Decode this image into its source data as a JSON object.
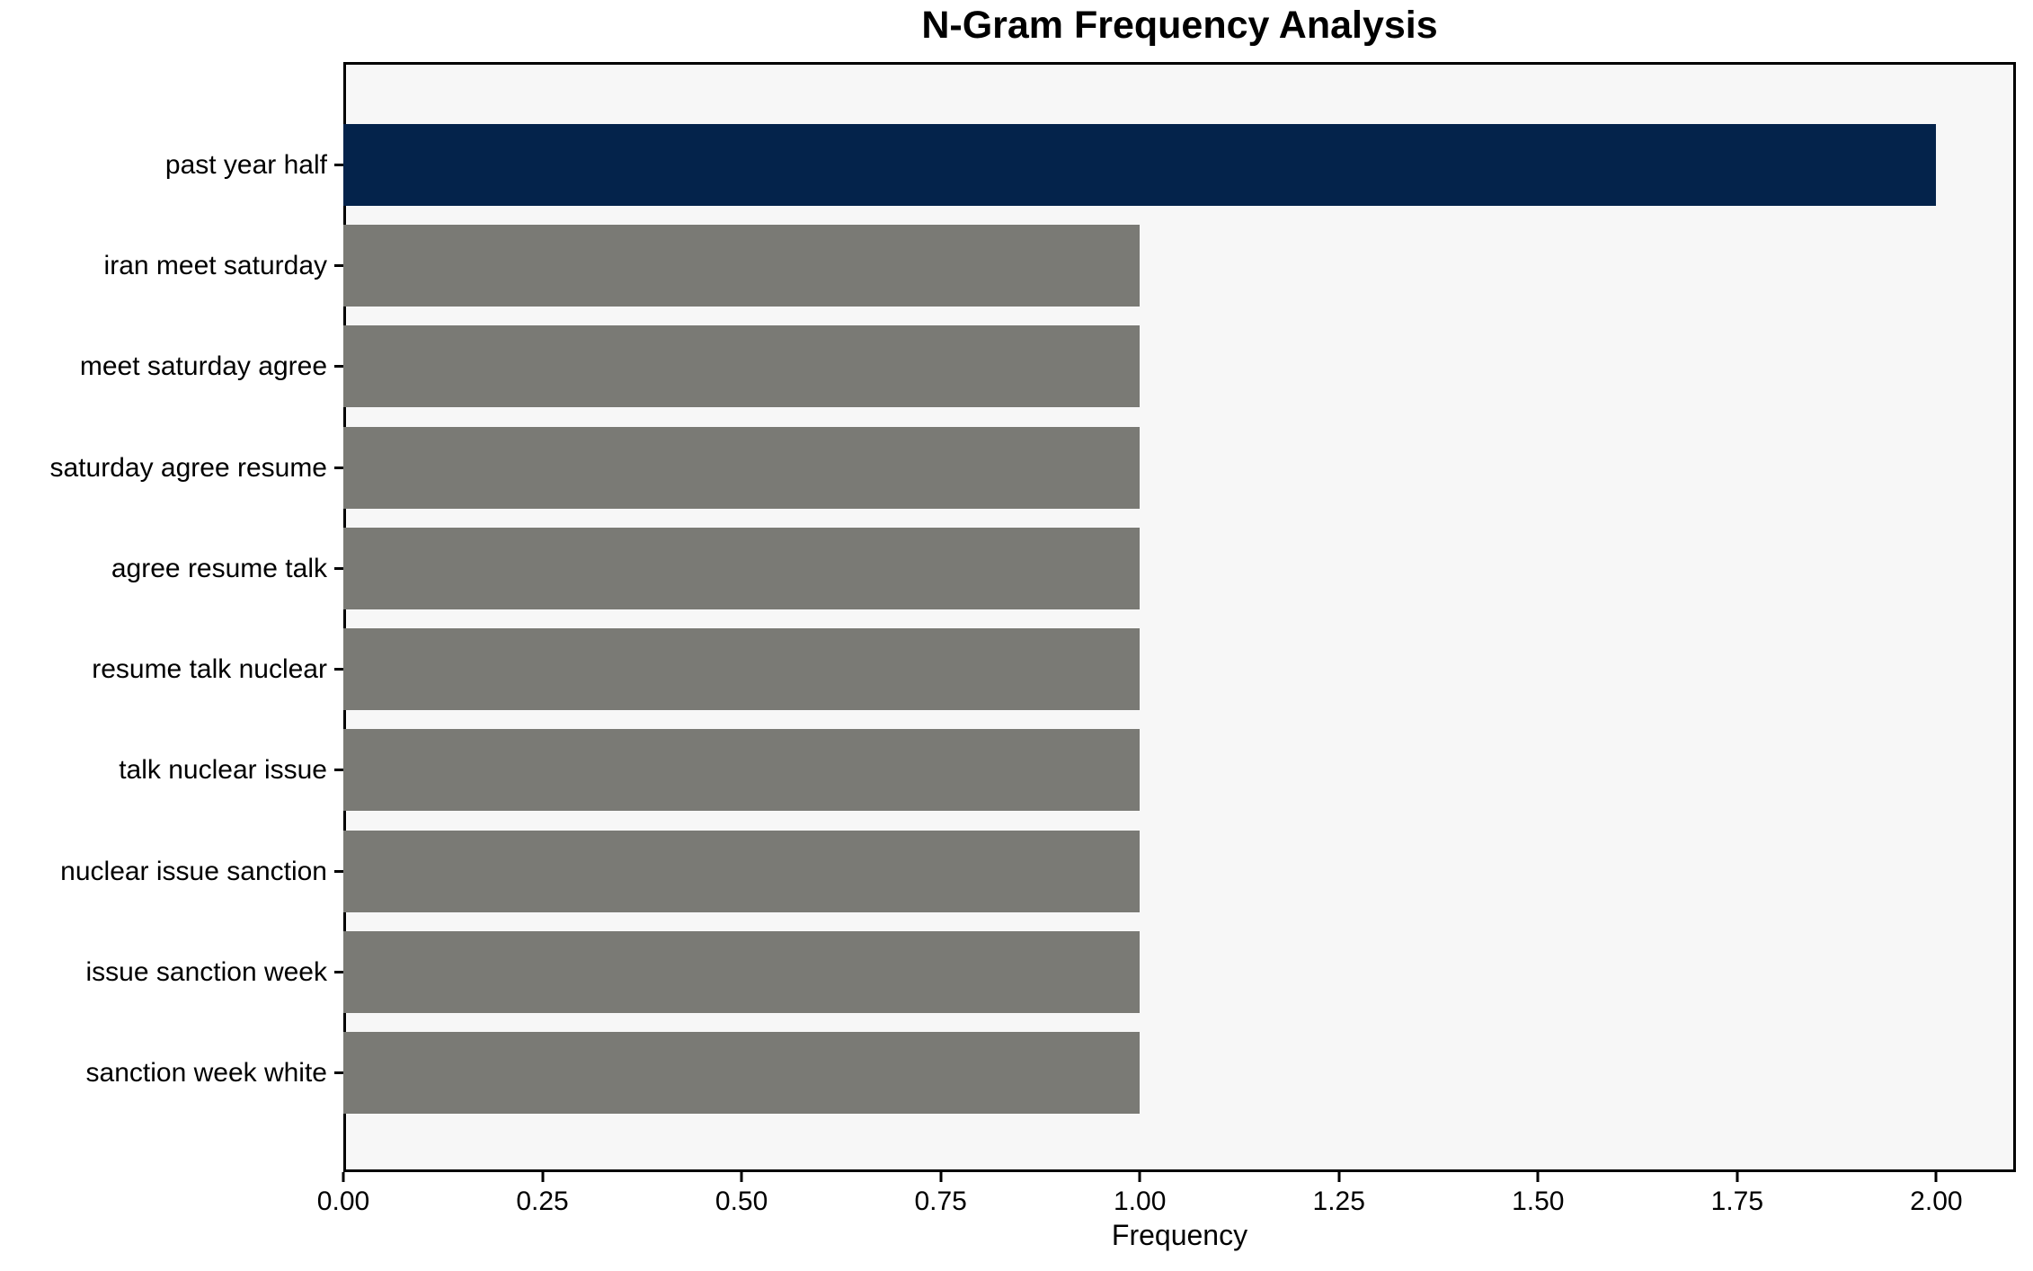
{
  "chart_data": {
    "type": "bar",
    "orientation": "horizontal",
    "title": "N-Gram Frequency Analysis",
    "xlabel": "Frequency",
    "ylabel": "",
    "categories": [
      "past year half",
      "iran meet saturday",
      "meet saturday agree",
      "saturday agree resume",
      "agree resume talk",
      "resume talk nuclear",
      "talk nuclear issue",
      "nuclear issue sanction",
      "issue sanction week",
      "sanction week white"
    ],
    "values": [
      2,
      1,
      1,
      1,
      1,
      1,
      1,
      1,
      1,
      1
    ],
    "xlim": [
      0,
      2.1
    ],
    "x_ticks": [
      0.0,
      0.25,
      0.5,
      0.75,
      1.0,
      1.25,
      1.5,
      1.75,
      2.0
    ],
    "x_tick_labels": [
      "0.00",
      "0.25",
      "0.50",
      "0.75",
      "1.00",
      "1.25",
      "1.50",
      "1.75",
      "2.00"
    ],
    "highlight_index": 0,
    "colors": {
      "highlight": "#04234b",
      "default": "#7a7a75",
      "plot_background": "#f7f7f7",
      "figure_background": "#ffffff",
      "spine": "#000000",
      "text": "#000000"
    },
    "grid": false,
    "legend": null
  }
}
